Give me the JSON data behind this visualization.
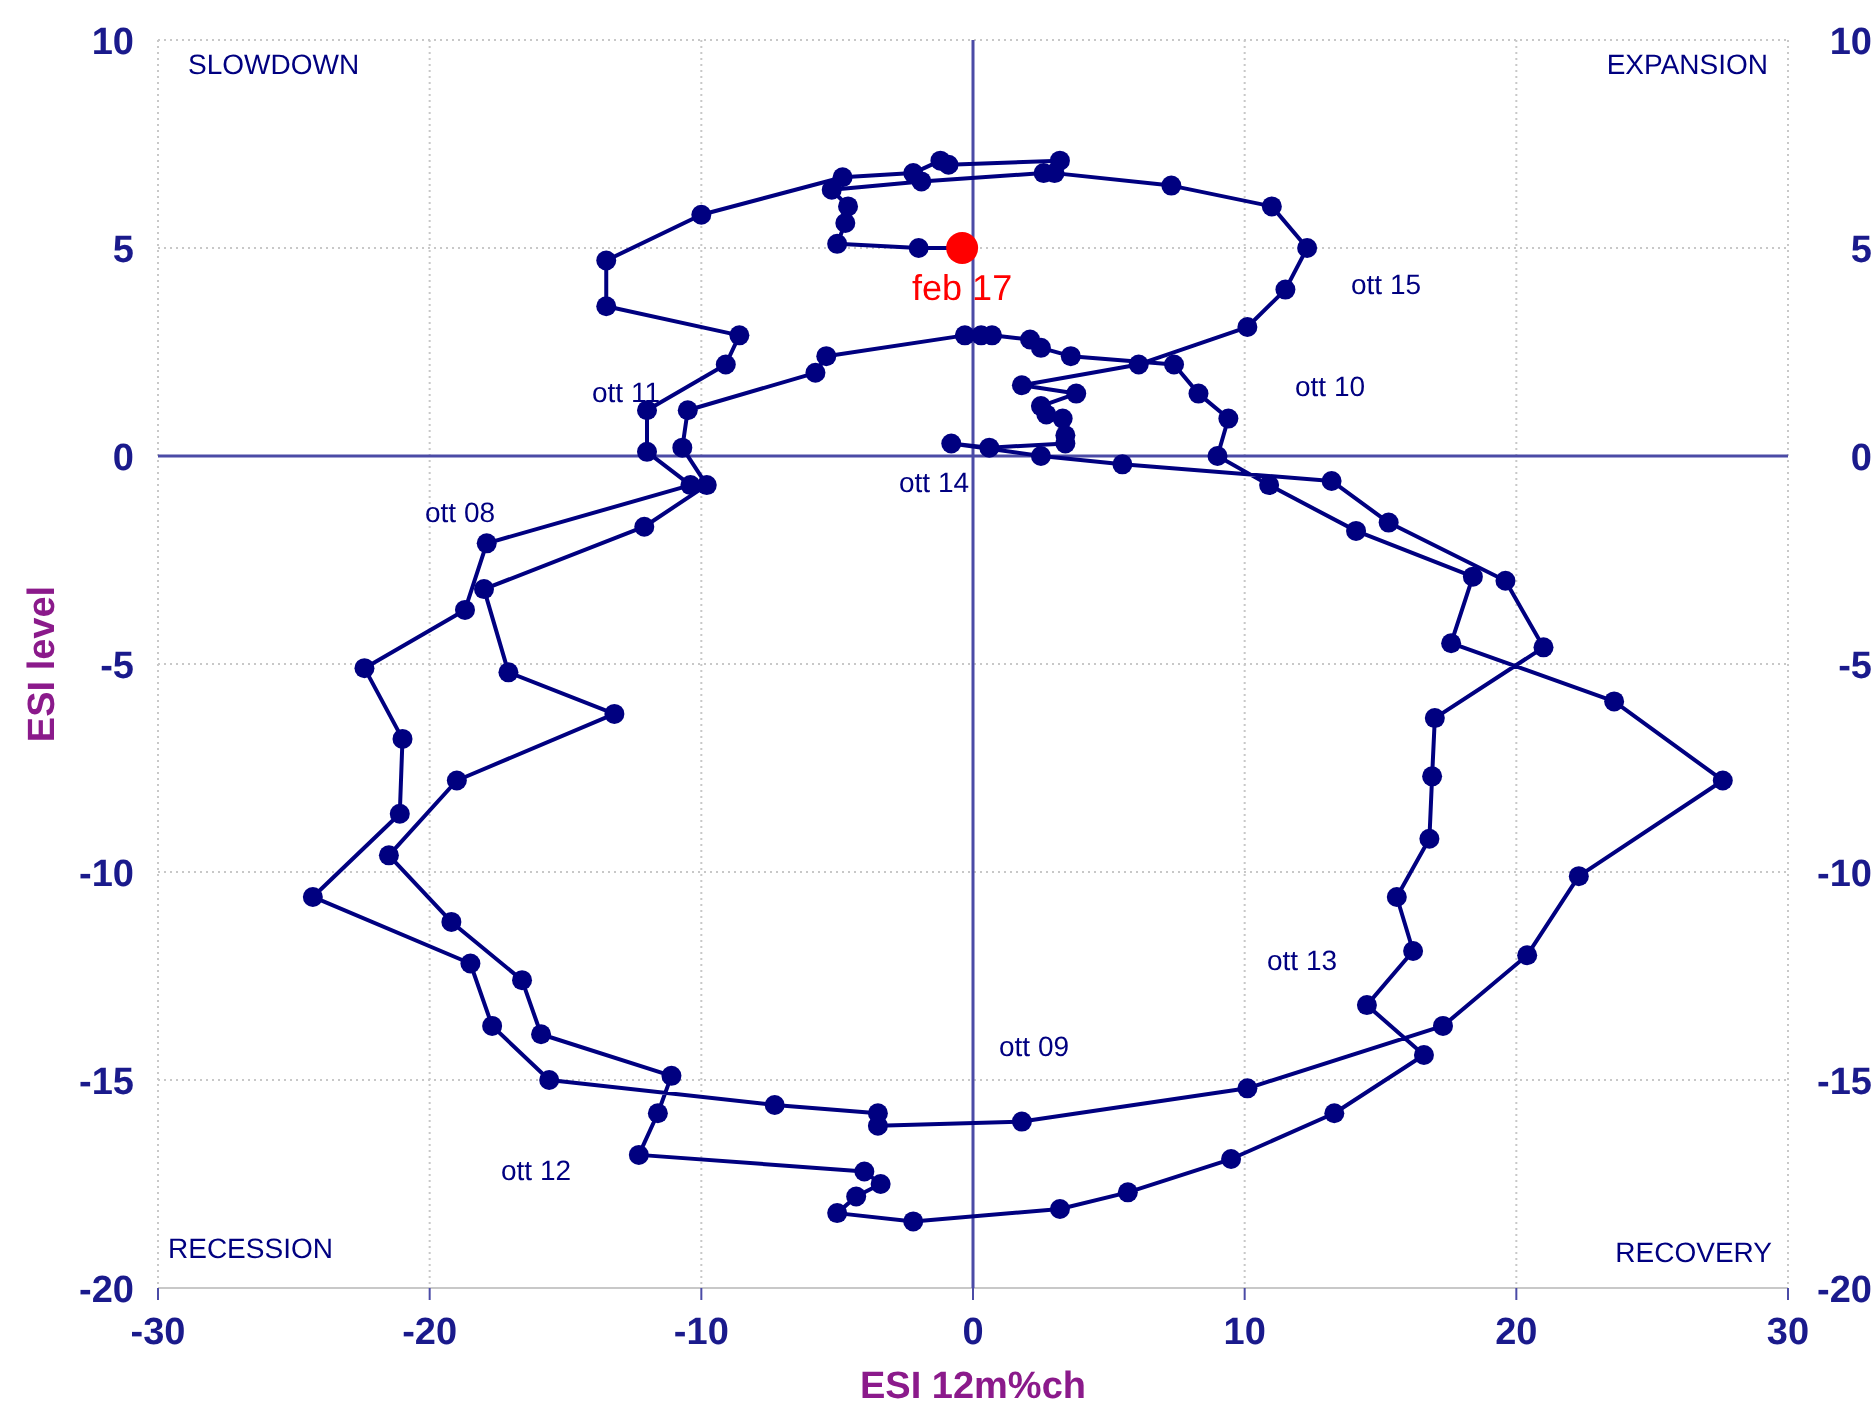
{
  "chart_data": {
    "type": "line",
    "xlabel": "ESI 12m%ch",
    "ylabel": "ESI level",
    "xlim": [
      -30,
      30
    ],
    "xticks": [
      -30,
      -20,
      -10,
      0,
      10,
      20,
      30
    ],
    "ylim": [
      -20,
      10
    ],
    "yticks": [
      -20,
      -15,
      -10,
      -5,
      0,
      5,
      10
    ],
    "y2lim": [
      -20,
      10
    ],
    "y2ticks": [
      -20,
      -15,
      -10,
      -5,
      0,
      5,
      10
    ],
    "grid": true,
    "marker": "circle",
    "line_style": "solid",
    "annotations": [
      "SLOWDOWN",
      "EXPANSION",
      "RECESSION",
      "RECOVERY",
      "ott 08",
      "ott 09",
      "ott 10",
      "ott 11",
      "ott 12",
      "ott 13",
      "ott 14",
      "ott 15"
    ],
    "series": [
      {
        "color": "#000080",
        "x": [
          3.2,
          -0.9,
          -1.2,
          -2.2,
          -4.8,
          -10.0,
          -13.5,
          -13.5,
          -8.6,
          -9.1,
          -12.0,
          -12.0,
          -10.4,
          -17.9,
          -18.7,
          -22.4,
          -21.0,
          -21.1,
          -24.3,
          -18.5,
          -17.7,
          -15.6,
          -7.3,
          -3.5,
          -3.5,
          1.8,
          10.1,
          17.3,
          20.4,
          22.3,
          27.6,
          23.6,
          17.6,
          18.4,
          14.1,
          10.9,
          9.0,
          9.4,
          8.3,
          7.4,
          3.6,
          2.5,
          2.1,
          0.7,
          0.3,
          -0.3,
          -5.4,
          -5.8,
          -10.5,
          -10.7,
          -9.8,
          -12.1,
          -18.0,
          -17.1,
          -13.2,
          -19.0,
          -21.5,
          -19.2,
          -16.6,
          -15.9,
          -11.1,
          -11.6,
          -12.3,
          -4.0,
          -3.4,
          -4.3,
          -5.0,
          -2.2,
          3.2,
          5.7,
          9.5,
          13.3,
          16.6,
          14.5,
          16.2,
          15.6,
          16.8,
          16.9,
          17.0,
          21.0,
          19.6,
          15.3,
          13.2,
          5.5,
          2.5,
          -0.8,
          0.6,
          3.4,
          3.4,
          3.3,
          2.7,
          2.5,
          3.8,
          1.8,
          6.1,
          10.1,
          11.5,
          12.3,
          11.0,
          7.3,
          3.0,
          2.6,
          -1.9,
          -5.2,
          -4.6,
          -4.7,
          -5.0,
          -2.0,
          -0.4
        ],
        "values": [
          7.1,
          7.0,
          7.1,
          6.8,
          6.7,
          5.8,
          4.7,
          3.6,
          2.9,
          2.2,
          1.1,
          0.1,
          -0.7,
          -2.1,
          -3.7,
          -5.1,
          -6.8,
          -8.6,
          -10.6,
          -12.2,
          -13.7,
          -15.0,
          -15.6,
          -15.8,
          -16.1,
          -16.0,
          -15.2,
          -13.7,
          -12.0,
          -10.1,
          -7.8,
          -5.9,
          -4.5,
          -2.9,
          -1.8,
          -0.7,
          0.0,
          0.9,
          1.5,
          2.2,
          2.4,
          2.6,
          2.8,
          2.9,
          2.9,
          2.9,
          2.4,
          2.0,
          1.1,
          0.2,
          -0.7,
          -1.7,
          -3.2,
          -5.2,
          -6.2,
          -7.8,
          -9.6,
          -11.2,
          -12.6,
          -13.9,
          -14.9,
          -15.8,
          -16.8,
          -17.2,
          -17.5,
          -17.8,
          -18.2,
          -18.4,
          -18.1,
          -17.7,
          -16.9,
          -15.8,
          -14.4,
          -13.2,
          -11.9,
          -10.6,
          -9.2,
          -7.7,
          -6.3,
          -4.6,
          -3.0,
          -1.6,
          -0.6,
          -0.2,
          0.0,
          0.3,
          0.2,
          0.3,
          0.5,
          0.9,
          1.0,
          1.2,
          1.5,
          1.7,
          2.2,
          3.1,
          4.0,
          5.0,
          6.0,
          6.5,
          6.8,
          6.8,
          6.6,
          6.4,
          6.0,
          5.6,
          5.1,
          5.0,
          5.0
        ]
      },
      {
        "type": "scatter",
        "name": "feb 17",
        "color": "#ff0000",
        "x": [
          -0.4
        ],
        "values": [
          5.0
        ]
      }
    ]
  }
}
